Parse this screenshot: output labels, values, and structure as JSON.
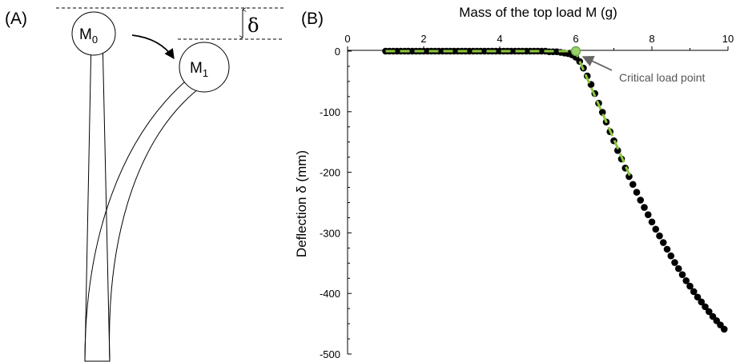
{
  "panel_a": {
    "label": "(A)",
    "mass_initial": {
      "letter": "M",
      "sub": "0"
    },
    "mass_deflected": {
      "letter": "M",
      "sub": "1"
    },
    "deflection_symbol": "δ"
  },
  "panel_b": {
    "label": "(B)"
  },
  "colors": {
    "markers": "#000000",
    "fit_lines": "#8dc63f",
    "critical_point": "#6aa84f",
    "annotation": "#555555"
  },
  "chart_data": {
    "type": "scatter",
    "title": "",
    "xlabel": "Mass of the top load M (g)",
    "ylabel": "Deflection δ (mm)",
    "x_axis_position": "top",
    "xlim": [
      0,
      10
    ],
    "ylim": [
      -500,
      0
    ],
    "x_ticks": [
      "0",
      "2",
      "4",
      "6",
      "8",
      "10"
    ],
    "y_ticks": [
      "0",
      "-100",
      "-200",
      "-300",
      "-400",
      "-500"
    ],
    "grid": false,
    "series": [
      {
        "marker": "filled-circle",
        "x": [
          1.0,
          1.1,
          1.2,
          1.3,
          1.4,
          1.5,
          1.6,
          1.7,
          1.8,
          1.9,
          2.0,
          2.1,
          2.2,
          2.3,
          2.4,
          2.5,
          2.6,
          2.7,
          2.8,
          2.9,
          3.0,
          3.1,
          3.2,
          3.3,
          3.4,
          3.5,
          3.6,
          3.7,
          3.8,
          3.9,
          4.0,
          4.1,
          4.2,
          4.3,
          4.4,
          4.5,
          4.6,
          4.7,
          4.8,
          4.9,
          5.0,
          5.1,
          5.2,
          5.3,
          5.4,
          5.5,
          5.6,
          5.7,
          5.8,
          5.9,
          6.0,
          6.1,
          6.2,
          6.3,
          6.4,
          6.5,
          6.6,
          6.7,
          6.8,
          6.9,
          7.0,
          7.1,
          7.2,
          7.3,
          7.4,
          7.5,
          7.6,
          7.7,
          7.8,
          7.9,
          8.0,
          8.1,
          8.2,
          8.3,
          8.4,
          8.5,
          8.6,
          8.7,
          8.8,
          8.9,
          9.0,
          9.1,
          9.2,
          9.3,
          9.4,
          9.5,
          9.6,
          9.7,
          9.8,
          9.9
        ],
        "y": [
          0,
          0,
          0,
          0,
          0,
          0,
          0,
          0,
          0,
          0,
          0,
          0,
          0,
          0,
          0,
          0,
          0,
          0,
          0,
          0,
          0,
          0,
          0,
          0,
          0,
          0,
          0,
          0,
          0,
          0,
          0,
          0,
          0,
          0,
          0,
          0,
          0,
          0,
          0,
          0,
          0,
          0,
          0,
          -1,
          -1,
          -1,
          -2,
          -3,
          -4,
          -6,
          -10,
          -17,
          -28,
          -41,
          -55,
          -70,
          -86,
          -101,
          -117,
          -133,
          -148,
          -164,
          -178,
          -193,
          -207,
          -220,
          -233,
          -246,
          -258,
          -270,
          -282,
          -294,
          -305,
          -316,
          -327,
          -338,
          -349,
          -359,
          -369,
          -379,
          -388,
          -397,
          -406,
          -414,
          -422,
          -430,
          -438,
          -445,
          -452,
          -459
        ]
      }
    ],
    "fit_lines": [
      {
        "style": "dashed",
        "x": [
          1.0,
          6.0
        ],
        "y": [
          0,
          0
        ]
      },
      {
        "style": "dashed",
        "x": [
          5.95,
          7.45
        ],
        "y": [
          5,
          -210
        ]
      }
    ],
    "critical_point": {
      "x": 6.0,
      "y": 0
    },
    "annotations": [
      {
        "text": "Critical load point",
        "x": 6.0,
        "y": 0
      }
    ]
  }
}
